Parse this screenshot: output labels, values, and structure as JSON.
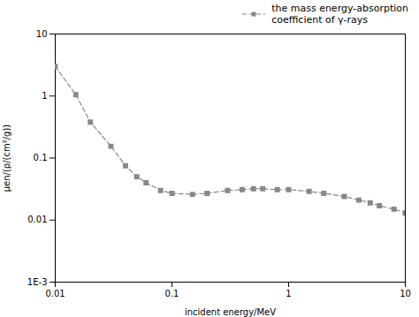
{
  "chart_data": {
    "type": "line",
    "log": true,
    "xlabel": "incident energy/MeV",
    "ylabel": "μen/(ρ/(cm²/g))",
    "x": [
      0.01,
      0.015,
      0.02,
      0.03,
      0.04,
      0.05,
      0.06,
      0.08,
      0.1,
      0.15,
      0.2,
      0.3,
      0.4,
      0.5,
      0.6,
      0.8,
      1.0,
      1.5,
      2.0,
      3.0,
      4.0,
      5.0,
      6.0,
      8.0,
      10.0
    ],
    "series": [
      {
        "name": "the mass energy-absorption\ncoefficient of γ-rays",
        "color": "#888888",
        "marker": "square",
        "line_style": "dashed",
        "values": [
          3.0,
          1.05,
          0.38,
          0.155,
          0.075,
          0.05,
          0.04,
          0.03,
          0.027,
          0.026,
          0.027,
          0.03,
          0.031,
          0.032,
          0.032,
          0.031,
          0.031,
          0.029,
          0.027,
          0.024,
          0.021,
          0.019,
          0.017,
          0.015,
          0.013
        ]
      }
    ],
    "xlim": [
      0.01,
      10
    ],
    "ylim": [
      0.001,
      10
    ],
    "xticks": [
      0.01,
      0.1,
      1,
      10
    ],
    "yticks": [
      {
        "value": 0.001,
        "label": "1E-3"
      },
      0.01,
      0.1,
      1,
      10
    ],
    "grid": false,
    "legend": "upper right"
  }
}
